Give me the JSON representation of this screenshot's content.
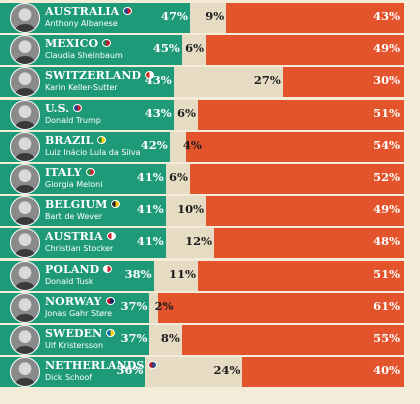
{
  "chart_data": {
    "type": "bar",
    "stacked": true,
    "orientation": "horizontal",
    "series": [
      {
        "key": "approve",
        "color": "#1f9a78"
      },
      {
        "key": "neutral",
        "color": "#e6dcc4"
      },
      {
        "key": "disapprove",
        "color": "#e3542c"
      }
    ],
    "rows": [
      {
        "country": "AUSTRALIA",
        "leader": "Anthony Albanese",
        "flag": [
          "#1a3a8a",
          "#cc2030"
        ],
        "approve": 47,
        "neutral": 9,
        "disapprove": 43
      },
      {
        "country": "MEXICO",
        "leader": "Claudia Sheinbaum",
        "flag": [
          "#1b7a43",
          "#c8102e"
        ],
        "approve": 45,
        "neutral": 6,
        "disapprove": 49
      },
      {
        "country": "SWITZERLAND",
        "leader": "Karin Keller-Sutter",
        "flag": [
          "#d52b1e",
          "#ffffff"
        ],
        "approve": 43,
        "neutral": 27,
        "disapprove": 30
      },
      {
        "country": "U.S.",
        "leader": "Donald Trump",
        "flag": [
          "#1a3a8a",
          "#cc2030"
        ],
        "approve": 43,
        "neutral": 6,
        "disapprove": 51
      },
      {
        "country": "BRAZIL",
        "leader": "Luiz Inácio Lula da Silva",
        "flag": [
          "#1b8a3a",
          "#f4d000"
        ],
        "approve": 42,
        "neutral": 4,
        "disapprove": 54
      },
      {
        "country": "ITALY",
        "leader": "Giorgia Meloni",
        "flag": [
          "#1b8a3a",
          "#cc2030"
        ],
        "approve": 41,
        "neutral": 6,
        "disapprove": 52
      },
      {
        "country": "BELGIUM",
        "leader": "Bart de Wever",
        "flag": [
          "#222222",
          "#f2c400"
        ],
        "approve": 41,
        "neutral": 10,
        "disapprove": 49
      },
      {
        "country": "AUSTRIA",
        "leader": "Christian Stocker",
        "flag": [
          "#cc2030",
          "#ffffff"
        ],
        "approve": 41,
        "neutral": 12,
        "disapprove": 48
      },
      {
        "country": "POLAND",
        "leader": "Donald Tusk",
        "flag": [
          "#ffffff",
          "#cc2030"
        ],
        "approve": 38,
        "neutral": 11,
        "disapprove": 51
      },
      {
        "country": "NORWAY",
        "leader": "Jonas Gahr Støre",
        "flag": [
          "#ba0c2f",
          "#00205b"
        ],
        "approve": 37,
        "neutral": 2,
        "disapprove": 61
      },
      {
        "country": "SWEDEN",
        "leader": "Ulf Kristersson",
        "flag": [
          "#006aa7",
          "#fecc00"
        ],
        "approve": 37,
        "neutral": 8,
        "disapprove": 55
      },
      {
        "country": "NETHERLANDS",
        "leader": "Dick Schoof",
        "flag": [
          "#ae1c28",
          "#21468b"
        ],
        "approve": 36,
        "neutral": 24,
        "disapprove": 40
      }
    ]
  }
}
